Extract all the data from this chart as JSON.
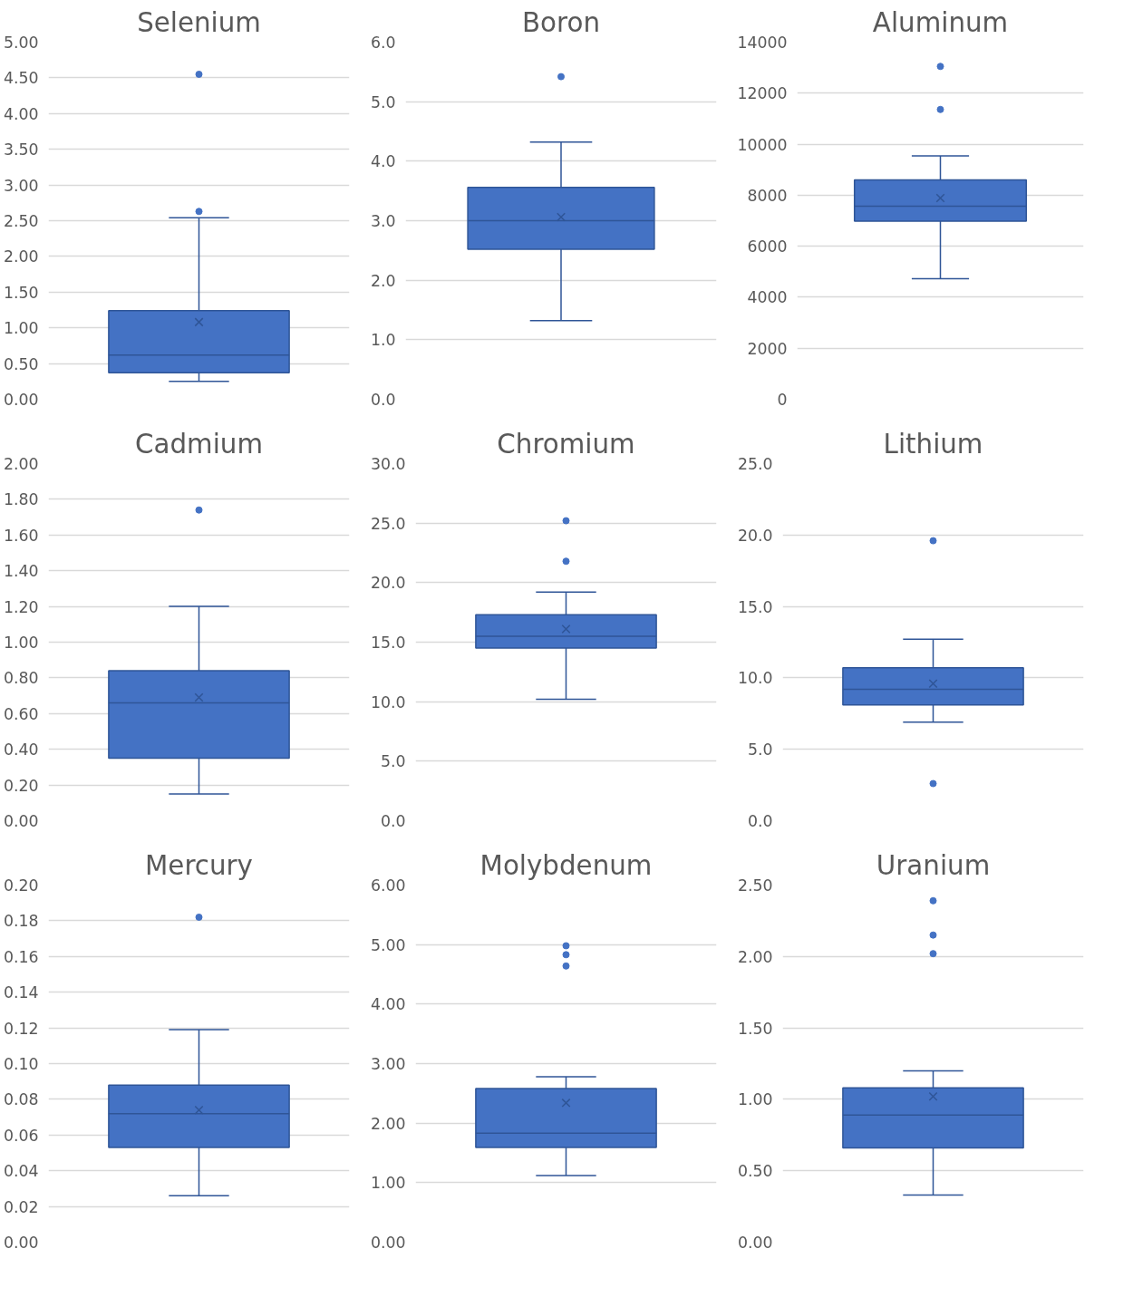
{
  "chart_data": [
    {
      "type": "box",
      "title": "Selenium",
      "categories": [
        null
      ],
      "color": "#4472c4",
      "marker": "circle",
      "grid": "y",
      "tick_labels": "y",
      "ylim": [
        0,
        5
      ],
      "yticks": [
        {
          "value": 0,
          "label": "0.00"
        },
        {
          "value": 0.5,
          "label": "0.50"
        },
        {
          "value": 1,
          "label": "1.00"
        },
        {
          "value": 1.5,
          "label": "1.50"
        },
        {
          "value": 2,
          "label": "2.00"
        },
        {
          "value": 2.5,
          "label": "2.50"
        },
        {
          "value": 3,
          "label": "3.00"
        },
        {
          "value": 3.5,
          "label": "3.50"
        },
        {
          "value": 4,
          "label": "4.00"
        },
        {
          "value": 4.5,
          "label": "4.50"
        },
        {
          "value": 5,
          "label": "5.00"
        }
      ],
      "boxes": [
        {
          "low": 0.25,
          "q1": 0.37,
          "median": 0.62,
          "q3": 1.24,
          "high": 2.54,
          "mean": 1.08,
          "outliers": [
            2.63,
            4.55
          ]
        }
      ]
    },
    {
      "type": "box",
      "title": "Boron",
      "categories": [
        null
      ],
      "color": "#4472c4",
      "marker": "circle",
      "grid": "y",
      "tick_labels": "y",
      "ylim": [
        0,
        6
      ],
      "yticks": [
        {
          "value": 0,
          "label": "0.0"
        },
        {
          "value": 1,
          "label": "1.0"
        },
        {
          "value": 2,
          "label": "2.0"
        },
        {
          "value": 3,
          "label": "3.0"
        },
        {
          "value": 4,
          "label": "4.0"
        },
        {
          "value": 5,
          "label": "5.0"
        },
        {
          "value": 6,
          "label": "6.0"
        }
      ],
      "boxes": [
        {
          "low": 1.32,
          "q1": 2.52,
          "median": 3.0,
          "q3": 3.56,
          "high": 4.32,
          "mean": 3.06,
          "outliers": [
            5.42
          ]
        }
      ]
    },
    {
      "type": "box",
      "title": "Aluminum",
      "categories": [
        null
      ],
      "color": "#4472c4",
      "marker": "circle",
      "grid": "y",
      "tick_labels": "y",
      "ylim": [
        0,
        14000
      ],
      "yticks": [
        0,
        2000,
        4000,
        6000,
        8000,
        10000,
        12000,
        14000
      ],
      "boxes": [
        {
          "low": 4730,
          "q1": 6980,
          "median": 7570,
          "q3": 8600,
          "high": 9540,
          "mean": 7890,
          "outliers": [
            11360,
            13050
          ]
        }
      ]
    },
    {
      "type": "box",
      "title": "Cadmium",
      "categories": [
        null
      ],
      "color": "#4472c4",
      "marker": "circle",
      "grid": "y",
      "tick_labels": "y",
      "ylim": [
        0,
        2
      ],
      "yticks": [
        {
          "value": 0,
          "label": "0.00"
        },
        {
          "value": 0.2,
          "label": "0.20"
        },
        {
          "value": 0.4,
          "label": "0.40"
        },
        {
          "value": 0.6,
          "label": "0.60"
        },
        {
          "value": 0.8,
          "label": "0.80"
        },
        {
          "value": 1,
          "label": "1.00"
        },
        {
          "value": 1.2,
          "label": "1.20"
        },
        {
          "value": 1.4,
          "label": "1.40"
        },
        {
          "value": 1.6,
          "label": "1.60"
        },
        {
          "value": 1.8,
          "label": "1.80"
        },
        {
          "value": 2,
          "label": "2.00"
        }
      ],
      "boxes": [
        {
          "low": 0.15,
          "q1": 0.35,
          "median": 0.66,
          "q3": 0.84,
          "high": 1.2,
          "mean": 0.69,
          "outliers": [
            1.74
          ]
        }
      ]
    },
    {
      "type": "box",
      "title": "Chromium",
      "categories": [
        null
      ],
      "color": "#4472c4",
      "marker": "circle",
      "grid": "y",
      "tick_labels": "y",
      "ylim": [
        0,
        30
      ],
      "yticks": [
        {
          "value": 0,
          "label": "0.0"
        },
        {
          "value": 5,
          "label": "5.0"
        },
        {
          "value": 10,
          "label": "10.0"
        },
        {
          "value": 15,
          "label": "15.0"
        },
        {
          "value": 20,
          "label": "20.0"
        },
        {
          "value": 25,
          "label": "25.0"
        },
        {
          "value": 30,
          "label": "30.0"
        }
      ],
      "boxes": [
        {
          "low": 10.2,
          "q1": 14.5,
          "median": 15.5,
          "q3": 17.3,
          "high": 19.2,
          "mean": 16.1,
          "outliers": [
            21.8,
            25.2
          ]
        }
      ]
    },
    {
      "type": "box",
      "title": "Lithium",
      "categories": [
        null
      ],
      "color": "#4472c4",
      "marker": "circle",
      "grid": "y",
      "tick_labels": "y",
      "ylim": [
        0,
        25
      ],
      "yticks": [
        {
          "value": 0,
          "label": "0.0"
        },
        {
          "value": 5,
          "label": "5.0"
        },
        {
          "value": 10,
          "label": "10.0"
        },
        {
          "value": 15,
          "label": "15.0"
        },
        {
          "value": 20,
          "label": "20.0"
        },
        {
          "value": 25,
          "label": "25.0"
        }
      ],
      "boxes": [
        {
          "low": 6.9,
          "q1": 8.1,
          "median": 9.2,
          "q3": 10.7,
          "high": 12.7,
          "mean": 9.6,
          "outliers": [
            2.6,
            19.6
          ]
        }
      ]
    },
    {
      "type": "box",
      "title": "Mercury",
      "categories": [
        null
      ],
      "color": "#4472c4",
      "marker": "circle",
      "grid": "y",
      "tick_labels": "y",
      "ylim": [
        0,
        0.2
      ],
      "yticks": [
        {
          "value": 0,
          "label": "0.00"
        },
        {
          "value": 0.02,
          "label": "0.02"
        },
        {
          "value": 0.04,
          "label": "0.04"
        },
        {
          "value": 0.06,
          "label": "0.06"
        },
        {
          "value": 0.08,
          "label": "0.08"
        },
        {
          "value": 0.1,
          "label": "0.10"
        },
        {
          "value": 0.12,
          "label": "0.12"
        },
        {
          "value": 0.14,
          "label": "0.14"
        },
        {
          "value": 0.16,
          "label": "0.16"
        },
        {
          "value": 0.18,
          "label": "0.18"
        },
        {
          "value": 0.2,
          "label": "0.20"
        }
      ],
      "boxes": [
        {
          "low": 0.026,
          "q1": 0.053,
          "median": 0.072,
          "q3": 0.088,
          "high": 0.119,
          "mean": 0.074,
          "outliers": [
            0.182
          ]
        }
      ]
    },
    {
      "type": "box",
      "title": "Molybdenum",
      "categories": [
        null
      ],
      "color": "#4472c4",
      "marker": "circle",
      "grid": "y",
      "tick_labels": "y",
      "ylim": [
        0,
        6
      ],
      "yticks": [
        {
          "value": 0,
          "label": "0.00"
        },
        {
          "value": 1,
          "label": "1.00"
        },
        {
          "value": 2,
          "label": "2.00"
        },
        {
          "value": 3,
          "label": "3.00"
        },
        {
          "value": 4,
          "label": "4.00"
        },
        {
          "value": 5,
          "label": "5.00"
        },
        {
          "value": 6,
          "label": "6.00"
        }
      ],
      "boxes": [
        {
          "low": 1.12,
          "q1": 1.59,
          "median": 1.83,
          "q3": 2.58,
          "high": 2.78,
          "mean": 2.34,
          "outliers": [
            4.64,
            4.83,
            4.98
          ]
        }
      ]
    },
    {
      "type": "box",
      "title": "Uranium",
      "categories": [
        null
      ],
      "color": "#4472c4",
      "marker": "circle",
      "grid": "y",
      "tick_labels": "y",
      "ylim": [
        0,
        2.5
      ],
      "yticks": [
        {
          "value": 0,
          "label": "0.00"
        },
        {
          "value": 0.5,
          "label": "0.50"
        },
        {
          "value": 1,
          "label": "1.00"
        },
        {
          "value": 1.5,
          "label": "1.50"
        },
        {
          "value": 2,
          "label": "2.00"
        },
        {
          "value": 2.5,
          "label": "2.50"
        }
      ],
      "boxes": [
        {
          "low": 0.33,
          "q1": 0.66,
          "median": 0.89,
          "q3": 1.08,
          "high": 1.2,
          "mean": 1.02,
          "outliers": [
            2.02,
            2.15,
            2.39
          ]
        }
      ]
    }
  ]
}
